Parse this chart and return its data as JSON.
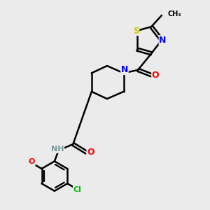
{
  "bg_color": "#ebebeb",
  "line_color": "#000000",
  "bond_width": 1.8,
  "atom_colors": {
    "N": "#0000ff",
    "O": "#ff0000",
    "S": "#cccc00",
    "Cl": "#00bb00",
    "C": "#000000",
    "H": "#7a9a9a"
  },
  "font_size": 8
}
